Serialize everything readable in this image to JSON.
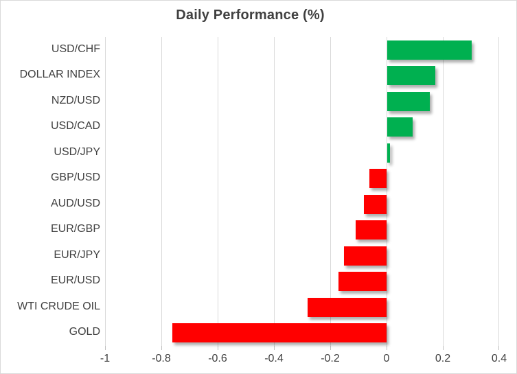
{
  "chart_data": {
    "type": "bar",
    "orientation": "horizontal",
    "title": "Daily Performance (%)",
    "categories": [
      "USD/CHF",
      "DOLLAR INDEX",
      "NZD/USD",
      "USD/CAD",
      "USD/JPY",
      "GBP/USD",
      "AUD/USD",
      "EUR/GBP",
      "EUR/JPY",
      "EUR/USD",
      "WTI CRUDE OIL",
      "GOLD"
    ],
    "values": [
      0.3,
      0.17,
      0.15,
      0.09,
      0.01,
      -0.06,
      -0.08,
      -0.11,
      -0.15,
      -0.17,
      -0.28,
      -0.76
    ],
    "xlabel": "",
    "ylabel": "",
    "xlim": [
      -1,
      0.4
    ],
    "xticks": [
      -1,
      -0.8,
      -0.6,
      -0.4,
      -0.2,
      0,
      0.2,
      0.4
    ],
    "xtick_labels": [
      "-1",
      "-0.8",
      "-0.6",
      "-0.4",
      "-0.2",
      "0",
      "0.2",
      "0.4"
    ],
    "grid": true,
    "legend": false
  },
  "colors": {
    "positive_bar": "#00B050",
    "negative_bar": "#FF0000",
    "gridline": "#D9D9D9",
    "text": "#404040",
    "border": "#D9D9D9"
  }
}
